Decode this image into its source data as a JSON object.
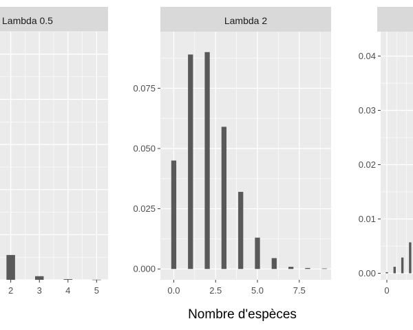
{
  "chart_data": [
    {
      "type": "bar",
      "panel": "Lambda 0.5",
      "x_ticks": [
        "2",
        "3",
        "4",
        "5"
      ],
      "x": [
        2,
        3,
        4,
        5
      ],
      "values": [
        0.055,
        0.008,
        0.0015,
        0.0003
      ],
      "ylim": [
        0,
        0.55
      ]
    },
    {
      "type": "bar",
      "panel": "Lambda 2",
      "x_ticks": [
        "0.0",
        "2.5",
        "5.0",
        "7.5"
      ],
      "y_ticks": [
        "0.000",
        "0.025",
        "0.050",
        "0.075"
      ],
      "x": [
        0,
        1,
        2,
        3,
        4,
        5,
        6,
        7,
        8,
        9
      ],
      "values": [
        0.045,
        0.089,
        0.09,
        0.059,
        0.032,
        0.013,
        0.0045,
        0.0009,
        0.0004,
        0.0002
      ],
      "xlim": [
        -0.8,
        9.4
      ],
      "ylim": [
        -0.0045,
        0.0985
      ]
    },
    {
      "type": "bar",
      "panel": "",
      "x_ticks": [
        "0"
      ],
      "y_ticks": [
        "0.00",
        "0.01",
        "0.02",
        "0.03",
        "0.04"
      ],
      "x": [
        0,
        1,
        2,
        3,
        4,
        5
      ],
      "values": [
        0.0002,
        0.0012,
        0.0029,
        0.0057,
        0.0142,
        0.0226
      ],
      "xlim": [
        -0.8,
        14
      ],
      "ylim": [
        -0.0012,
        0.0445
      ]
    }
  ],
  "x_axis_title": "Nombre d'espèces",
  "colors": {
    "bar": "#595959",
    "panel_bg": "#ebebeb",
    "strip_bg": "#d9d9d9",
    "grid": "#ffffff"
  }
}
